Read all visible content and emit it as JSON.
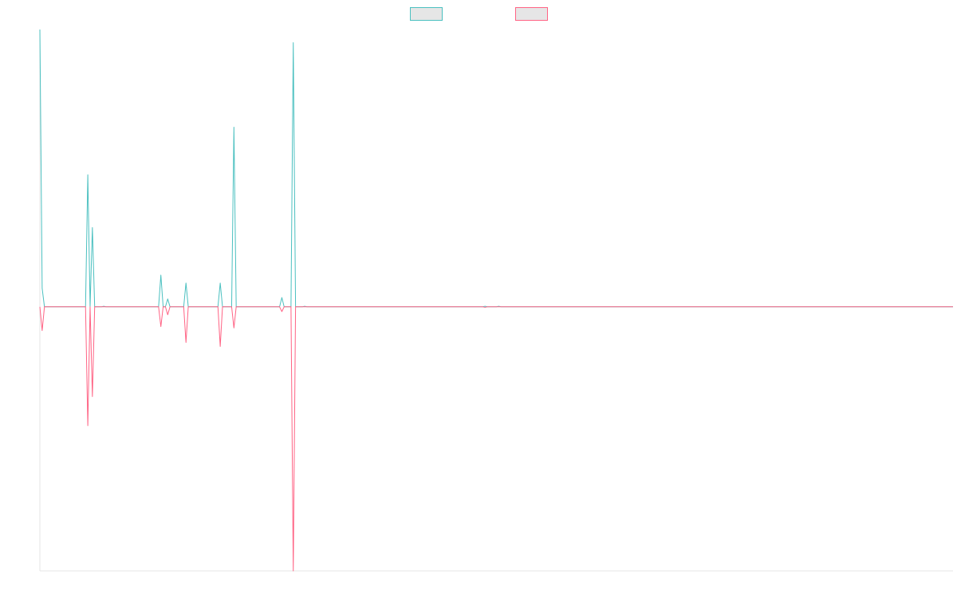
{
  "chart_data": {
    "type": "line",
    "title": "",
    "xlabel": "",
    "ylabel": "",
    "x": [
      0,
      1,
      2,
      3,
      4,
      5,
      6,
      7,
      8,
      9,
      10,
      11,
      12,
      13,
      14,
      15,
      16,
      17,
      18,
      19,
      20,
      21,
      22,
      23,
      24,
      25,
      26,
      27,
      28,
      29,
      30,
      31,
      32,
      33,
      34,
      35,
      36,
      37,
      38,
      39,
      40,
      41,
      42,
      43,
      44,
      45,
      46,
      47,
      48,
      49,
      50,
      51,
      52,
      53,
      54,
      55,
      56,
      57,
      58,
      59,
      60,
      61,
      62,
      63,
      64,
      65,
      66,
      67,
      68,
      69,
      70,
      71,
      72,
      73,
      74,
      75,
      76,
      77,
      78,
      79,
      80,
      81,
      82,
      83,
      84,
      85,
      86,
      87,
      88,
      89,
      90,
      91,
      92,
      93,
      94,
      95,
      96,
      97,
      98,
      99,
      100,
      101,
      102,
      103,
      104,
      105,
      106,
      107,
      108,
      109,
      110,
      111,
      112,
      113,
      114,
      115,
      116,
      117,
      118,
      119,
      120,
      121,
      122,
      123,
      124,
      125,
      126,
      127,
      128,
      129,
      130,
      131,
      132,
      133,
      134,
      135,
      136,
      137,
      138,
      139,
      140,
      141,
      142,
      143,
      144,
      145,
      146,
      147,
      148,
      149,
      150,
      151,
      152,
      153,
      154,
      155,
      156,
      157,
      158,
      159,
      160,
      161,
      162,
      163,
      164,
      165,
      166,
      167,
      168,
      169,
      170,
      171,
      172,
      173,
      174,
      175,
      176,
      177,
      178,
      179,
      180,
      181,
      182,
      183,
      184,
      185,
      186,
      187,
      188,
      189,
      190,
      191,
      192,
      193,
      194,
      195,
      196,
      197,
      198,
      199,
      200,
      201,
      202,
      203,
      204,
      205,
      206,
      207,
      208,
      209,
      210,
      211,
      212,
      213,
      214,
      215,
      216,
      217,
      218,
      219,
      220,
      221,
      222,
      223,
      224,
      225,
      226,
      227,
      228,
      229,
      230,
      231,
      232,
      233,
      234,
      235,
      236,
      237,
      238,
      239,
      240,
      241,
      242,
      243,
      244,
      245,
      246,
      247,
      248,
      249,
      250,
      251,
      252,
      253,
      254,
      255,
      256,
      257,
      258,
      259,
      260,
      261,
      262,
      263,
      264,
      265,
      266,
      267,
      268,
      269,
      270,
      271,
      272,
      273,
      274,
      275,
      276,
      277,
      278,
      279,
      280,
      281,
      282,
      283,
      284,
      285,
      286,
      287,
      288,
      289,
      290,
      291,
      292,
      293,
      294,
      295,
      296,
      297,
      298,
      299,
      300,
      301,
      302,
      303,
      304,
      305,
      306,
      307,
      308,
      309,
      310,
      311,
      312,
      313,
      314,
      315,
      316,
      317,
      318,
      319,
      320,
      321,
      322,
      323,
      324,
      325,
      326,
      327,
      328,
      329,
      330,
      331,
      332,
      333,
      334,
      335,
      336,
      337,
      338,
      339,
      340,
      341,
      342,
      343,
      344,
      345,
      346,
      347,
      348,
      349,
      350,
      351,
      352,
      353,
      354,
      355,
      356,
      357,
      358,
      359,
      360,
      361,
      362,
      363,
      364,
      365,
      366,
      367,
      368,
      369,
      370,
      371,
      372,
      373,
      374,
      375,
      376,
      377,
      378,
      379,
      380,
      381,
      382,
      383,
      384,
      385,
      386,
      387,
      388,
      389,
      390,
      391,
      392,
      393,
      394,
      395,
      396,
      397,
      398,
      399,
      400
    ],
    "ylim": [
      -1,
      1.05
    ],
    "grid": false,
    "legend_position": "top-center",
    "series": [
      {
        "name": "",
        "color": "#4bc0c0",
        "fill": "#e6e6e6",
        "sparse_values": {
          "0": 1.05,
          "1": 0.07,
          "21": 0.5,
          "23": 0.3,
          "28": 0.002,
          "53": 0.12,
          "56": 0.03,
          "64": 0.09,
          "79": 0.09,
          "85": 0.68,
          "106": 0.035,
          "111": 1.0,
          "116": 0.002,
          "195": 0.002,
          "201": 0.002
        }
      },
      {
        "name": "",
        "color": "#ff6384",
        "fill": "#e6e6e6",
        "sparse_values": {
          "1": -0.09,
          "21": -0.45,
          "23": -0.34,
          "53": -0.075,
          "56": -0.03,
          "64": -0.135,
          "79": -0.15,
          "85": -0.08,
          "106": -0.018,
          "111": -1.0,
          "195": -0.002
        }
      }
    ]
  }
}
